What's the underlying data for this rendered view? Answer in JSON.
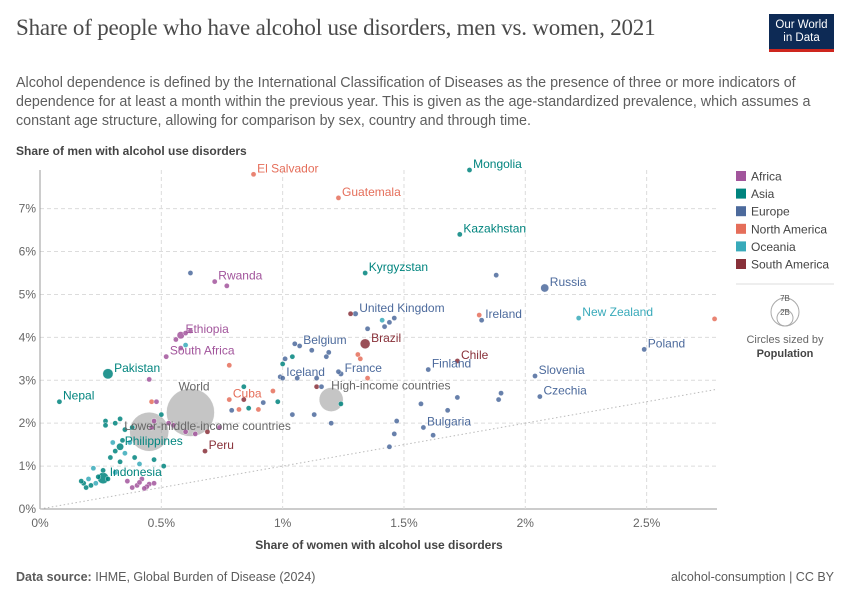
{
  "title": "Share of people who have alcohol use disorders, men vs. women, 2021",
  "subtitle": "Alcohol dependence is defined by the International Classification of Diseases as the presence of three or more indicators of dependence for at least a month within the previous year. This is given as the age-standardized prevalence, which assumes a constant age structure, allowing for comparison by sex, country and through time.",
  "logo": {
    "line1": "Our World",
    "line2": "in Data"
  },
  "footer": {
    "source_label": "Data source:",
    "source": "IHME, Global Burden of Disease (2024)",
    "right": "alcohol-consumption | CC BY"
  },
  "colors": {
    "Africa": "#a2559c",
    "Asia": "#00847e",
    "Europe": "#4c6a9c",
    "North America": "#e56e5a",
    "Oceania": "#38aaba",
    "South America": "#883039",
    "World": "#8c8c8c"
  },
  "size_legend": {
    "title1": "Circles sized by",
    "title2": "Population",
    "big": "7B",
    "small": "2B"
  },
  "chart_data": {
    "type": "scatter",
    "xlabel": "Share of women with alcohol use disorders",
    "ylabel": "Share of men with alcohol use disorders",
    "xlim": [
      0,
      2.79
    ],
    "ylim": [
      0,
      7.9
    ],
    "x_ticks": [
      {
        "v": 0,
        "label": "0%"
      },
      {
        "v": 0.5,
        "label": "0.5%"
      },
      {
        "v": 1,
        "label": "1%"
      },
      {
        "v": 1.5,
        "label": "1.5%"
      },
      {
        "v": 2,
        "label": "2%"
      },
      {
        "v": 2.5,
        "label": "2.5%"
      }
    ],
    "y_ticks": [
      {
        "v": 0,
        "label": "0%"
      },
      {
        "v": 1,
        "label": "1%"
      },
      {
        "v": 2,
        "label": "2%"
      },
      {
        "v": 3,
        "label": "3%"
      },
      {
        "v": 4,
        "label": "4%"
      },
      {
        "v": 5,
        "label": "5%"
      },
      {
        "v": 6,
        "label": "6%"
      },
      {
        "v": 7,
        "label": "7%"
      }
    ],
    "legend": [
      "Africa",
      "Asia",
      "Europe",
      "North America",
      "Oceania",
      "South America"
    ],
    "labeled": [
      {
        "label": "El Salvador",
        "x": 0.88,
        "y": 7.8,
        "region": "North America",
        "pop": 6.3
      },
      {
        "label": "Mongolia",
        "x": 1.77,
        "y": 7.9,
        "region": "Asia",
        "pop": 3.4
      },
      {
        "label": "Guatemala",
        "x": 1.23,
        "y": 7.25,
        "region": "North America",
        "pop": 17.6
      },
      {
        "label": "Kazakhstan",
        "x": 1.73,
        "y": 6.4,
        "region": "Asia",
        "pop": 19
      },
      {
        "label": "Kyrgyzstan",
        "x": 1.34,
        "y": 5.5,
        "region": "Asia",
        "pop": 6.7
      },
      {
        "label": "Rwanda",
        "x": 0.72,
        "y": 5.3,
        "region": "Africa",
        "pop": 13.5
      },
      {
        "label": "Russia",
        "x": 2.08,
        "y": 5.15,
        "region": "Europe",
        "pop": 145
      },
      {
        "label": "United Kingdom",
        "x": 1.3,
        "y": 4.55,
        "region": "Europe",
        "pop": 67
      },
      {
        "label": "Ireland",
        "x": 1.82,
        "y": 4.4,
        "region": "Europe",
        "pop": 5
      },
      {
        "label": "New Zealand",
        "x": 2.22,
        "y": 4.45,
        "region": "Oceania",
        "pop": 5.1
      },
      {
        "label": "Ethiopia",
        "x": 0.58,
        "y": 4.05,
        "region": "Africa",
        "pop": 120
      },
      {
        "label": "Belgium",
        "x": 1.07,
        "y": 3.8,
        "region": "Europe",
        "pop": 11.6
      },
      {
        "label": "Brazil",
        "x": 1.34,
        "y": 3.85,
        "region": "South America",
        "pop": 214
      },
      {
        "label": "Poland",
        "x": 2.49,
        "y": 3.72,
        "region": "Europe",
        "pop": 38
      },
      {
        "label": "South Africa",
        "x": 0.52,
        "y": 3.55,
        "region": "Africa",
        "pop": 60
      },
      {
        "label": "Chile",
        "x": 1.72,
        "y": 3.45,
        "region": "South America",
        "pop": 19.5
      },
      {
        "label": "Finland",
        "x": 1.6,
        "y": 3.25,
        "region": "Europe",
        "pop": 5.5
      },
      {
        "label": "France",
        "x": 1.24,
        "y": 3.15,
        "region": "Europe",
        "pop": 65
      },
      {
        "label": "Pakistan",
        "x": 0.28,
        "y": 3.15,
        "region": "Asia",
        "pop": 230
      },
      {
        "label": "Slovenia",
        "x": 2.04,
        "y": 3.1,
        "region": "Europe",
        "pop": 2.1
      },
      {
        "label": "Iceland",
        "x": 1.0,
        "y": 3.05,
        "region": "Europe",
        "pop": 0.37
      },
      {
        "label": "High-income countries",
        "x": 1.2,
        "y": 2.55,
        "region": "World",
        "pop": 1250
      },
      {
        "label": "Czechia",
        "x": 2.06,
        "y": 2.62,
        "region": "Europe",
        "pop": 10.5
      },
      {
        "label": "Nepal",
        "x": 0.08,
        "y": 2.5,
        "region": "Asia",
        "pop": 30
      },
      {
        "label": "Cuba",
        "x": 0.78,
        "y": 2.55,
        "region": "North America",
        "pop": 11.3
      },
      {
        "label": "World",
        "x": 0.62,
        "y": 2.25,
        "region": "World",
        "pop": 7900
      },
      {
        "label": "Bulgaria",
        "x": 1.58,
        "y": 1.9,
        "region": "Europe",
        "pop": 6.9
      },
      {
        "label": "Lower-middle-income countries",
        "x": 0.45,
        "y": 1.8,
        "region": "World",
        "pop": 3300
      },
      {
        "label": "Philippines",
        "x": 0.33,
        "y": 1.45,
        "region": "Asia",
        "pop": 114
      },
      {
        "label": "Peru",
        "x": 0.68,
        "y": 1.35,
        "region": "South America",
        "pop": 33
      },
      {
        "label": "Indonesia",
        "x": 0.26,
        "y": 0.72,
        "region": "Asia",
        "pop": 273
      }
    ],
    "unlabeled": [
      {
        "x": 0.62,
        "y": 5.5,
        "region": "Europe",
        "pop": 3
      },
      {
        "x": 0.77,
        "y": 5.2,
        "region": "Africa",
        "pop": 3
      },
      {
        "x": 1.88,
        "y": 5.45,
        "region": "Europe",
        "pop": 3
      },
      {
        "x": 2.78,
        "y": 4.43,
        "region": "North America",
        "pop": 3
      },
      {
        "x": 1.81,
        "y": 4.52,
        "region": "North America",
        "pop": 3
      },
      {
        "x": 1.41,
        "y": 4.4,
        "region": "Oceania",
        "pop": 3
      },
      {
        "x": 1.44,
        "y": 4.35,
        "region": "Europe",
        "pop": 3
      },
      {
        "x": 1.46,
        "y": 4.45,
        "region": "Europe",
        "pop": 3
      },
      {
        "x": 1.42,
        "y": 4.25,
        "region": "Europe",
        "pop": 3
      },
      {
        "x": 1.35,
        "y": 4.2,
        "region": "Europe",
        "pop": 3
      },
      {
        "x": 1.28,
        "y": 4.55,
        "region": "South America",
        "pop": 3
      },
      {
        "x": 0.6,
        "y": 4.1,
        "region": "Africa",
        "pop": 3
      },
      {
        "x": 0.62,
        "y": 4.15,
        "region": "Africa",
        "pop": 3
      },
      {
        "x": 0.56,
        "y": 3.95,
        "region": "Africa",
        "pop": 3
      },
      {
        "x": 0.58,
        "y": 3.75,
        "region": "Africa",
        "pop": 3
      },
      {
        "x": 0.6,
        "y": 3.82,
        "region": "Oceania",
        "pop": 3
      },
      {
        "x": 1.05,
        "y": 3.85,
        "region": "Europe",
        "pop": 3
      },
      {
        "x": 1.01,
        "y": 3.5,
        "region": "Europe",
        "pop": 3
      },
      {
        "x": 1.04,
        "y": 3.55,
        "region": "Asia",
        "pop": 3
      },
      {
        "x": 1.12,
        "y": 3.7,
        "region": "Europe",
        "pop": 3
      },
      {
        "x": 1.19,
        "y": 3.65,
        "region": "Europe",
        "pop": 3
      },
      {
        "x": 1.18,
        "y": 3.55,
        "region": "Europe",
        "pop": 3
      },
      {
        "x": 1.31,
        "y": 3.6,
        "region": "North America",
        "pop": 3
      },
      {
        "x": 1.32,
        "y": 3.5,
        "region": "North America",
        "pop": 3
      },
      {
        "x": 1.0,
        "y": 3.38,
        "region": "Asia",
        "pop": 3
      },
      {
        "x": 0.99,
        "y": 3.08,
        "region": "Europe",
        "pop": 3
      },
      {
        "x": 1.06,
        "y": 3.05,
        "region": "Europe",
        "pop": 3
      },
      {
        "x": 1.14,
        "y": 3.05,
        "region": "Europe",
        "pop": 3
      },
      {
        "x": 1.23,
        "y": 3.2,
        "region": "Europe",
        "pop": 3
      },
      {
        "x": 1.35,
        "y": 3.05,
        "region": "North America",
        "pop": 3
      },
      {
        "x": 1.14,
        "y": 2.85,
        "region": "South America",
        "pop": 3
      },
      {
        "x": 1.16,
        "y": 2.85,
        "region": "Europe",
        "pop": 3
      },
      {
        "x": 0.84,
        "y": 2.85,
        "region": "Asia",
        "pop": 3
      },
      {
        "x": 0.96,
        "y": 2.75,
        "region": "North America",
        "pop": 3
      },
      {
        "x": 0.84,
        "y": 2.55,
        "region": "South America",
        "pop": 3
      },
      {
        "x": 0.82,
        "y": 2.32,
        "region": "North America",
        "pop": 3
      },
      {
        "x": 0.79,
        "y": 2.3,
        "region": "Europe",
        "pop": 3
      },
      {
        "x": 0.86,
        "y": 2.35,
        "region": "Asia",
        "pop": 3
      },
      {
        "x": 0.9,
        "y": 2.32,
        "region": "North America",
        "pop": 3
      },
      {
        "x": 0.92,
        "y": 2.48,
        "region": "Europe",
        "pop": 3
      },
      {
        "x": 0.98,
        "y": 2.5,
        "region": "Asia",
        "pop": 3
      },
      {
        "x": 1.24,
        "y": 2.45,
        "region": "Asia",
        "pop": 3
      },
      {
        "x": 1.04,
        "y": 2.2,
        "region": "Europe",
        "pop": 3
      },
      {
        "x": 1.2,
        "y": 2.0,
        "region": "Europe",
        "pop": 3
      },
      {
        "x": 1.13,
        "y": 2.2,
        "region": "Europe",
        "pop": 3
      },
      {
        "x": 1.47,
        "y": 2.05,
        "region": "Europe",
        "pop": 3
      },
      {
        "x": 1.57,
        "y": 2.45,
        "region": "Europe",
        "pop": 3
      },
      {
        "x": 1.68,
        "y": 2.3,
        "region": "Europe",
        "pop": 3
      },
      {
        "x": 1.72,
        "y": 2.6,
        "region": "Europe",
        "pop": 3
      },
      {
        "x": 1.62,
        "y": 1.72,
        "region": "Europe",
        "pop": 3
      },
      {
        "x": 1.46,
        "y": 1.75,
        "region": "Europe",
        "pop": 3
      },
      {
        "x": 1.44,
        "y": 1.45,
        "region": "Europe",
        "pop": 3
      },
      {
        "x": 1.9,
        "y": 2.7,
        "region": "Europe",
        "pop": 3
      },
      {
        "x": 1.89,
        "y": 2.55,
        "region": "Europe",
        "pop": 3
      },
      {
        "x": 0.45,
        "y": 3.02,
        "region": "Africa",
        "pop": 3
      },
      {
        "x": 0.46,
        "y": 2.5,
        "region": "North America",
        "pop": 3
      },
      {
        "x": 0.48,
        "y": 2.5,
        "region": "Africa",
        "pop": 3
      },
      {
        "x": 0.5,
        "y": 2.2,
        "region": "Asia",
        "pop": 3
      },
      {
        "x": 0.47,
        "y": 2.05,
        "region": "Africa",
        "pop": 3
      },
      {
        "x": 0.53,
        "y": 2.0,
        "region": "Africa",
        "pop": 3
      },
      {
        "x": 0.55,
        "y": 1.95,
        "region": "Africa",
        "pop": 3
      },
      {
        "x": 0.46,
        "y": 1.9,
        "region": "Africa",
        "pop": 3
      },
      {
        "x": 0.6,
        "y": 1.8,
        "region": "Africa",
        "pop": 3
      },
      {
        "x": 0.64,
        "y": 1.75,
        "region": "Africa",
        "pop": 3
      },
      {
        "x": 0.74,
        "y": 1.9,
        "region": "Africa",
        "pop": 3
      },
      {
        "x": 0.69,
        "y": 1.8,
        "region": "South America",
        "pop": 3
      },
      {
        "x": 0.78,
        "y": 3.35,
        "region": "North America",
        "pop": 3
      },
      {
        "x": 0.27,
        "y": 2.05,
        "region": "Asia",
        "pop": 3
      },
      {
        "x": 0.27,
        "y": 1.95,
        "region": "Asia",
        "pop": 3
      },
      {
        "x": 0.31,
        "y": 2.0,
        "region": "Asia",
        "pop": 3
      },
      {
        "x": 0.33,
        "y": 2.1,
        "region": "Asia",
        "pop": 3
      },
      {
        "x": 0.35,
        "y": 1.85,
        "region": "Asia",
        "pop": 3
      },
      {
        "x": 0.38,
        "y": 1.9,
        "region": "Asia",
        "pop": 3
      },
      {
        "x": 0.34,
        "y": 1.6,
        "region": "Asia",
        "pop": 3
      },
      {
        "x": 0.37,
        "y": 1.55,
        "region": "Oceania",
        "pop": 3
      },
      {
        "x": 0.3,
        "y": 1.55,
        "region": "Oceania",
        "pop": 3
      },
      {
        "x": 0.31,
        "y": 1.35,
        "region": "Asia",
        "pop": 3
      },
      {
        "x": 0.35,
        "y": 1.3,
        "region": "Oceania",
        "pop": 3
      },
      {
        "x": 0.29,
        "y": 1.2,
        "region": "Asia",
        "pop": 3
      },
      {
        "x": 0.33,
        "y": 1.1,
        "region": "Asia",
        "pop": 3
      },
      {
        "x": 0.39,
        "y": 1.2,
        "region": "Asia",
        "pop": 3
      },
      {
        "x": 0.41,
        "y": 1.05,
        "region": "Oceania",
        "pop": 3
      },
      {
        "x": 0.47,
        "y": 1.15,
        "region": "Asia",
        "pop": 3
      },
      {
        "x": 0.51,
        "y": 1.0,
        "region": "Asia",
        "pop": 3
      },
      {
        "x": 0.22,
        "y": 0.95,
        "region": "Oceania",
        "pop": 3
      },
      {
        "x": 0.26,
        "y": 0.9,
        "region": "Asia",
        "pop": 3
      },
      {
        "x": 0.31,
        "y": 0.85,
        "region": "Oceania",
        "pop": 3
      },
      {
        "x": 0.24,
        "y": 0.75,
        "region": "Asia",
        "pop": 3
      },
      {
        "x": 0.28,
        "y": 0.7,
        "region": "Asia",
        "pop": 3
      },
      {
        "x": 0.2,
        "y": 0.7,
        "region": "Oceania",
        "pop": 3
      },
      {
        "x": 0.18,
        "y": 0.6,
        "region": "Asia",
        "pop": 3
      },
      {
        "x": 0.21,
        "y": 0.55,
        "region": "Asia",
        "pop": 3
      },
      {
        "x": 0.19,
        "y": 0.5,
        "region": "Asia",
        "pop": 3
      },
      {
        "x": 0.23,
        "y": 0.6,
        "region": "Oceania",
        "pop": 3
      },
      {
        "x": 0.17,
        "y": 0.65,
        "region": "Asia",
        "pop": 3
      },
      {
        "x": 0.42,
        "y": 0.7,
        "region": "Africa",
        "pop": 3
      },
      {
        "x": 0.45,
        "y": 0.58,
        "region": "Africa",
        "pop": 3
      },
      {
        "x": 0.4,
        "y": 0.55,
        "region": "Africa",
        "pop": 3
      },
      {
        "x": 0.38,
        "y": 0.5,
        "region": "Africa",
        "pop": 3
      },
      {
        "x": 0.44,
        "y": 0.52,
        "region": "Africa",
        "pop": 3
      },
      {
        "x": 0.47,
        "y": 0.6,
        "region": "Africa",
        "pop": 3
      },
      {
        "x": 0.36,
        "y": 0.65,
        "region": "Africa",
        "pop": 3
      },
      {
        "x": 0.43,
        "y": 0.48,
        "region": "Africa",
        "pop": 3
      },
      {
        "x": 0.41,
        "y": 0.62,
        "region": "Africa",
        "pop": 3
      }
    ]
  }
}
